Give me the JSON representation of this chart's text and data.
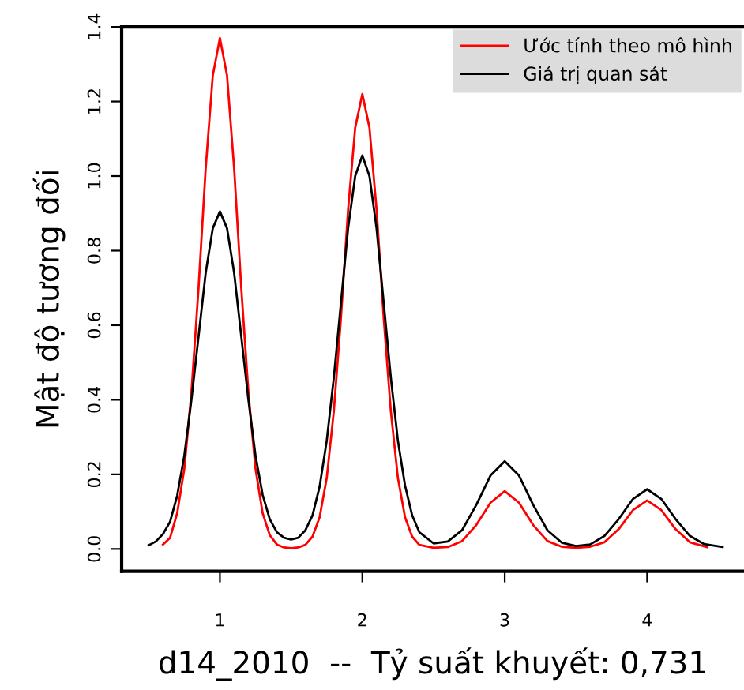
{
  "chart_data": {
    "type": "line",
    "xlabel": "d14_2010  --  Tỷ suất khuyết: 0,731",
    "ylabel": "Mật độ tương đối",
    "xlim": [
      0.31,
      4.68
    ],
    "ylim": [
      -0.06,
      1.4
    ],
    "xticks": [
      1,
      2,
      3,
      4
    ],
    "yticks": [
      {
        "value": 0,
        "label": "0.0"
      },
      0.2,
      0.4,
      0.6,
      0.8,
      {
        "value": 1,
        "label": "1.0"
      },
      1.2,
      1.4
    ],
    "grid": false,
    "legend": "top right",
    "marker": "none",
    "line_style": "solid",
    "series": [
      {
        "name": "Ước tính theo mô hình",
        "color": "#ff0000",
        "x": [
          0.6,
          0.65,
          0.7,
          0.75,
          0.8,
          0.85,
          0.9,
          0.95,
          1.0,
          1.05,
          1.1,
          1.15,
          1.2,
          1.25,
          1.3,
          1.35,
          1.4,
          1.45,
          1.5,
          1.55,
          1.6,
          1.65,
          1.7,
          1.75,
          1.8,
          1.85,
          1.9,
          1.95,
          2.0,
          2.05,
          2.1,
          2.15,
          2.2,
          2.25,
          2.3,
          2.35,
          2.4,
          2.5,
          2.6,
          2.7,
          2.8,
          2.9,
          3.0,
          3.1,
          3.2,
          3.3,
          3.4,
          3.5,
          3.6,
          3.7,
          3.8,
          3.9,
          4.0,
          4.1,
          4.2,
          4.3,
          4.42
        ],
        "values": [
          0.012,
          0.03,
          0.096,
          0.215,
          0.42,
          0.7,
          1.02,
          1.27,
          1.37,
          1.27,
          1.02,
          0.7,
          0.42,
          0.215,
          0.096,
          0.037,
          0.012,
          0.004,
          0.002,
          0.004,
          0.011,
          0.033,
          0.085,
          0.19,
          0.37,
          0.62,
          0.91,
          1.13,
          1.22,
          1.13,
          0.91,
          0.62,
          0.37,
          0.19,
          0.085,
          0.033,
          0.011,
          0.003,
          0.005,
          0.021,
          0.064,
          0.124,
          0.155,
          0.124,
          0.064,
          0.021,
          0.006,
          0.003,
          0.006,
          0.018,
          0.053,
          0.104,
          0.13,
          0.104,
          0.053,
          0.018,
          0.005
        ]
      },
      {
        "name": "Giá trị quan sát",
        "color": "#000000",
        "x": [
          0.5,
          0.55,
          0.6,
          0.65,
          0.7,
          0.75,
          0.8,
          0.85,
          0.9,
          0.95,
          1.0,
          1.05,
          1.1,
          1.15,
          1.2,
          1.25,
          1.3,
          1.35,
          1.4,
          1.45,
          1.5,
          1.55,
          1.6,
          1.65,
          1.7,
          1.75,
          1.8,
          1.85,
          1.9,
          1.95,
          2.0,
          2.05,
          2.1,
          2.15,
          2.2,
          2.25,
          2.3,
          2.35,
          2.4,
          2.5,
          2.6,
          2.7,
          2.8,
          2.9,
          3.0,
          3.1,
          3.2,
          3.3,
          3.4,
          3.5,
          3.6,
          3.7,
          3.8,
          3.9,
          4.0,
          4.1,
          4.2,
          4.3,
          4.4,
          4.53
        ],
        "values": [
          0.01,
          0.02,
          0.04,
          0.073,
          0.143,
          0.25,
          0.4,
          0.57,
          0.74,
          0.86,
          0.905,
          0.86,
          0.74,
          0.57,
          0.4,
          0.25,
          0.145,
          0.08,
          0.045,
          0.03,
          0.025,
          0.03,
          0.05,
          0.09,
          0.167,
          0.29,
          0.46,
          0.66,
          0.86,
          1.0,
          1.055,
          1.0,
          0.86,
          0.66,
          0.46,
          0.29,
          0.17,
          0.09,
          0.045,
          0.015,
          0.02,
          0.05,
          0.118,
          0.197,
          0.235,
          0.197,
          0.118,
          0.05,
          0.017,
          0.008,
          0.012,
          0.035,
          0.08,
          0.134,
          0.16,
          0.134,
          0.08,
          0.035,
          0.013,
          0.005
        ]
      }
    ]
  }
}
